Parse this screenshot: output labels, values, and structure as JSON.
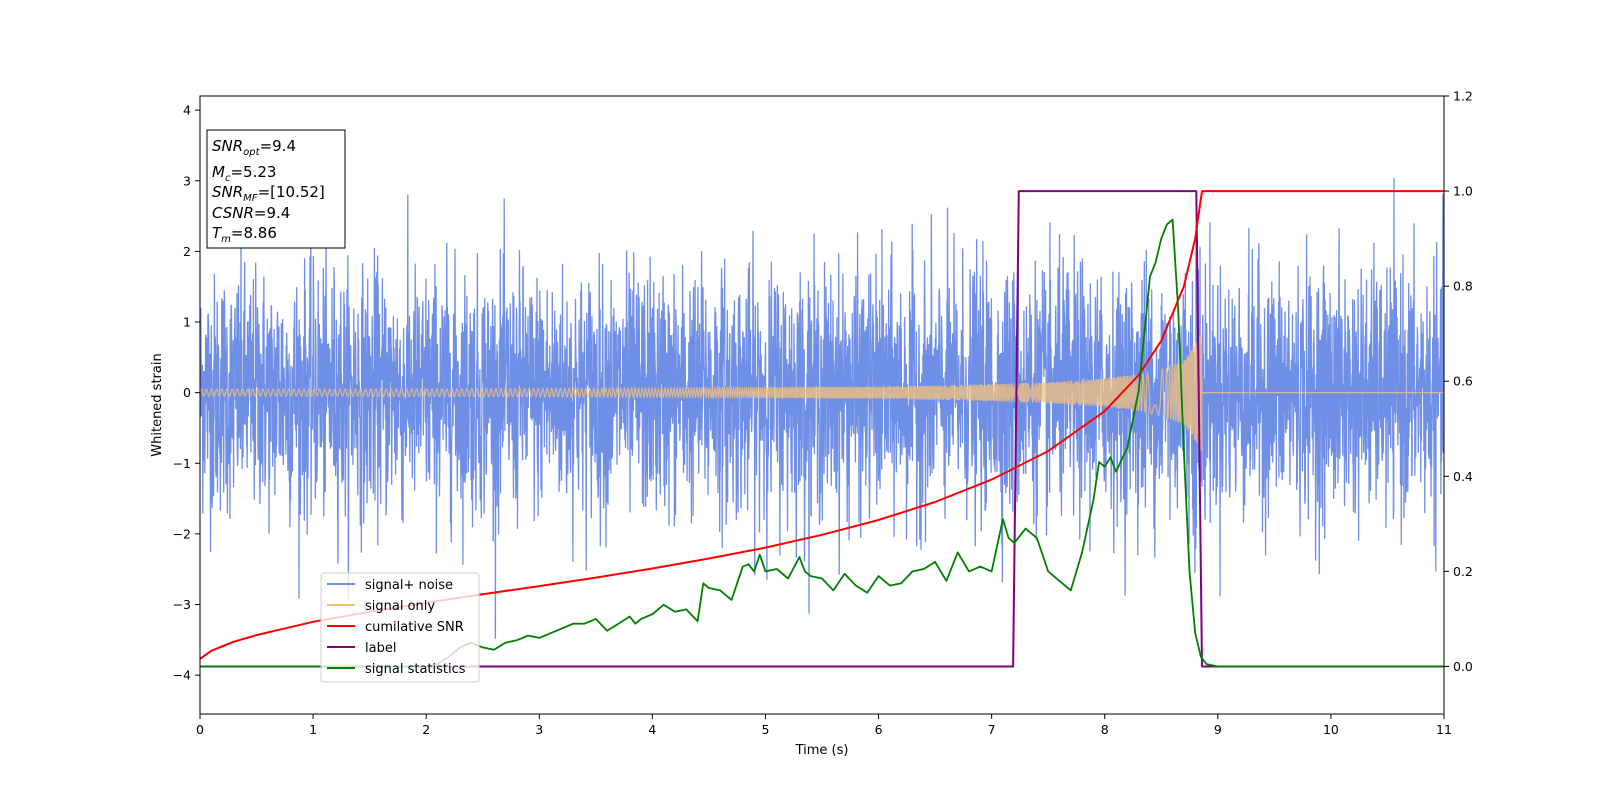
{
  "chart_data": {
    "type": "line",
    "xlabel": "Time (s)",
    "ylabel": "Whitened strain",
    "xlim": [
      0,
      11
    ],
    "ylim": [
      -4.55,
      4.2
    ],
    "y2lim": [
      -0.1,
      1.2
    ],
    "xticks": [
      0,
      1,
      2,
      3,
      4,
      5,
      6,
      7,
      8,
      9,
      10,
      11
    ],
    "yticks": [
      -4,
      -3,
      -2,
      -1,
      0,
      1,
      2,
      3,
      4
    ],
    "y2ticks": [
      0.0,
      0.2,
      0.4,
      0.6,
      0.8,
      1.0,
      1.2
    ],
    "xtick_labels": [
      "0",
      "1",
      "2",
      "3",
      "4",
      "5",
      "6",
      "7",
      "8",
      "9",
      "10",
      "11"
    ],
    "ytick_labels": [
      "−4",
      "−3",
      "−2",
      "−1",
      "0",
      "1",
      "2",
      "3",
      "4"
    ],
    "y2tick_labels": [
      "0.0",
      "0.2",
      "0.4",
      "0.6",
      "0.8",
      "1.0",
      "1.2"
    ],
    "grid": false,
    "legend_placement": "lower-left",
    "colors": {
      "noise": "#6f8ee6",
      "signal": "#f5c27a",
      "cumulative": "#ff0000",
      "label": "#800080",
      "statistics": "#008000"
    },
    "info_box": {
      "snr_opt": {
        "base": "SNR",
        "sub": "opt",
        "value": "=9.4"
      },
      "mc": {
        "base": "M",
        "sub": "c",
        "value": "=5.23"
      },
      "snr_mf": {
        "base": "SNR",
        "sub": "MF",
        "value": "=[10.52]"
      },
      "csnr": {
        "base": "CSNR",
        "value": "=9.4"
      },
      "tm": {
        "base": "T",
        "sub": "m",
        "value": "=8.86"
      }
    },
    "series": [
      {
        "name": "signal+ noise",
        "axis": "left",
        "description_values": {
          "sigma": 0.85,
          "signal_end": 8.86,
          "t_end": 11
        }
      },
      {
        "name": "signal only",
        "axis": "left",
        "envelope_x": [
          0,
          1,
          2,
          3,
          4,
          5,
          6,
          7,
          7.5,
          8,
          8.3,
          8.5,
          8.7,
          8.86
        ],
        "envelope_y": [
          0.05,
          0.05,
          0.055,
          0.06,
          0.065,
          0.075,
          0.085,
          0.12,
          0.15,
          0.2,
          0.26,
          0.33,
          0.45,
          0.85
        ]
      },
      {
        "name": "cumilative SNR",
        "axis": "right",
        "x": [
          0,
          0.1,
          0.3,
          0.5,
          1,
          1.5,
          2,
          2.5,
          3,
          3.5,
          4,
          4.5,
          5,
          5.5,
          6,
          6.5,
          7,
          7.5,
          8,
          8.3,
          8.5,
          8.7,
          8.8,
          8.86,
          9,
          10,
          11
        ],
        "y": [
          0.016,
          0.033,
          0.052,
          0.066,
          0.094,
          0.115,
          0.134,
          0.152,
          0.169,
          0.187,
          0.206,
          0.227,
          0.25,
          0.277,
          0.308,
          0.346,
          0.393,
          0.453,
          0.537,
          0.613,
          0.685,
          0.8,
          0.9,
          1.0,
          1.0,
          1.0,
          1.0
        ]
      },
      {
        "name": "label",
        "axis": "right",
        "x": [
          0,
          7.19,
          7.24,
          8.81,
          8.86,
          11
        ],
        "y": [
          0,
          0,
          1,
          1,
          0,
          0
        ]
      },
      {
        "name": "signal statistics",
        "axis": "right",
        "x": [
          0,
          0.5,
          1,
          1.5,
          2.0,
          2.1,
          2.2,
          2.3,
          2.4,
          2.5,
          2.6,
          2.7,
          2.8,
          2.9,
          3.0,
          3.1,
          3.2,
          3.3,
          3.4,
          3.5,
          3.6,
          3.7,
          3.8,
          3.85,
          3.9,
          4.0,
          4.1,
          4.2,
          4.3,
          4.4,
          4.45,
          4.5,
          4.6,
          4.7,
          4.8,
          4.85,
          4.9,
          4.95,
          5.0,
          5.1,
          5.2,
          5.3,
          5.35,
          5.4,
          5.5,
          5.6,
          5.7,
          5.8,
          5.9,
          6.0,
          6.1,
          6.2,
          6.3,
          6.4,
          6.5,
          6.6,
          6.7,
          6.8,
          6.9,
          7.0,
          7.1,
          7.15,
          7.2,
          7.3,
          7.4,
          7.5,
          7.6,
          7.7,
          7.8,
          7.9,
          7.95,
          8.0,
          8.05,
          8.1,
          8.2,
          8.3,
          8.35,
          8.4,
          8.45,
          8.5,
          8.55,
          8.6,
          8.65,
          8.7,
          8.75,
          8.8,
          8.85,
          8.9,
          9.0,
          9.5,
          10,
          11
        ],
        "y": [
          0.0,
          0.0,
          0.0,
          0.0,
          0.0,
          0.005,
          0.02,
          0.04,
          0.05,
          0.04,
          0.035,
          0.05,
          0.055,
          0.065,
          0.06,
          0.07,
          0.08,
          0.09,
          0.09,
          0.1,
          0.075,
          0.09,
          0.105,
          0.09,
          0.1,
          0.11,
          0.13,
          0.115,
          0.12,
          0.095,
          0.175,
          0.165,
          0.16,
          0.14,
          0.21,
          0.215,
          0.2,
          0.235,
          0.2,
          0.205,
          0.185,
          0.23,
          0.2,
          0.19,
          0.185,
          0.16,
          0.195,
          0.17,
          0.155,
          0.19,
          0.17,
          0.175,
          0.2,
          0.205,
          0.22,
          0.18,
          0.24,
          0.2,
          0.21,
          0.2,
          0.31,
          0.27,
          0.26,
          0.29,
          0.27,
          0.2,
          0.18,
          0.16,
          0.24,
          0.35,
          0.43,
          0.42,
          0.44,
          0.41,
          0.46,
          0.58,
          0.7,
          0.82,
          0.85,
          0.9,
          0.93,
          0.94,
          0.75,
          0.45,
          0.2,
          0.07,
          0.02,
          0.005,
          0.0,
          0.0,
          0.0,
          0.0
        ]
      }
    ]
  }
}
